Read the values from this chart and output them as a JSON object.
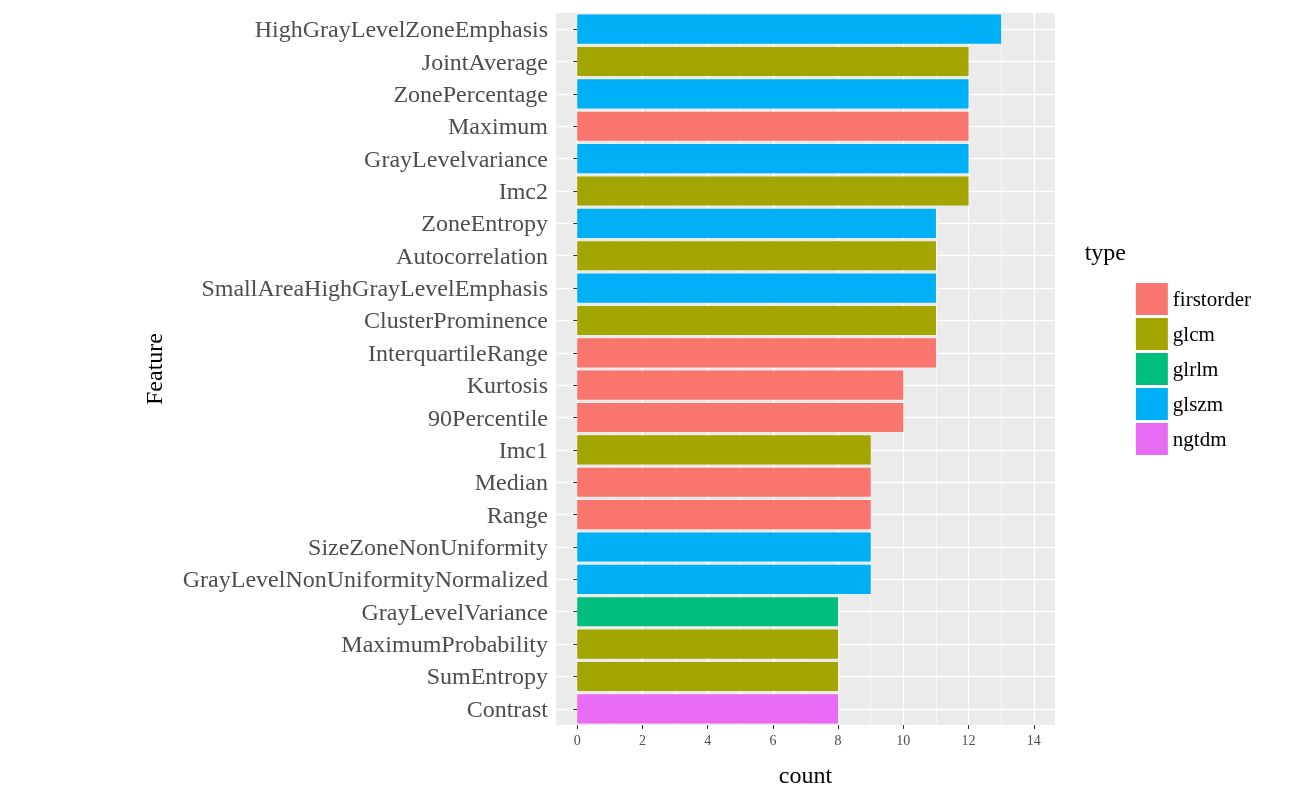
{
  "chart_data": {
    "type": "bar",
    "orientation": "horizontal",
    "stacked": true,
    "xlabel": "count",
    "ylabel": "Feature",
    "legend_title": "type",
    "legend": "right",
    "grid": true,
    "categories": [
      "HighGrayLevelZoneEmphasis",
      "JointAverage",
      "ZonePercentage",
      "Maximum",
      "GrayLevelvariance",
      "Imc2",
      "ZoneEntropy",
      "Autocorrelation",
      "SmallAreaHighGrayLevelEmphasis",
      "ClusterProminence",
      "InterquartileRange",
      "Kurtosis",
      "90Percentile",
      "Imc1",
      "Median",
      "Range",
      "SizeZoneNonUniformity",
      "GrayLevelNonUniformityNormalized",
      "GrayLevelVariance",
      "MaximumProbability",
      "SumEntropy",
      "Contrast"
    ],
    "xlim": [
      -0.65,
      14.65
    ],
    "xticks": [
      0,
      2,
      4,
      6,
      8,
      10,
      12,
      14
    ],
    "series": [
      {
        "name": "firstorder",
        "color": "#f8766d",
        "values": [
          null,
          null,
          null,
          12,
          null,
          null,
          null,
          null,
          null,
          null,
          11,
          10,
          10,
          null,
          9,
          9,
          null,
          null,
          null,
          null,
          null,
          null
        ]
      },
      {
        "name": "glcm",
        "color": "#a3a500",
        "values": [
          null,
          12,
          null,
          null,
          null,
          12,
          null,
          11,
          null,
          11,
          null,
          null,
          null,
          9,
          null,
          null,
          null,
          null,
          null,
          8,
          8,
          null
        ]
      },
      {
        "name": "glrlm",
        "color": "#00bf7d",
        "values": [
          null,
          null,
          null,
          null,
          null,
          null,
          null,
          null,
          null,
          null,
          null,
          null,
          null,
          null,
          null,
          null,
          null,
          null,
          8,
          null,
          null,
          null
        ]
      },
      {
        "name": "glszm",
        "color": "#00b0f6",
        "values": [
          13,
          null,
          12,
          null,
          12,
          null,
          11,
          null,
          11,
          null,
          null,
          null,
          null,
          null,
          null,
          null,
          9,
          9,
          null,
          null,
          null,
          null
        ]
      },
      {
        "name": "ngtdm",
        "color": "#e76bf3",
        "values": [
          null,
          null,
          null,
          null,
          null,
          null,
          null,
          null,
          null,
          null,
          null,
          null,
          null,
          null,
          null,
          null,
          null,
          null,
          null,
          null,
          null,
          8
        ]
      }
    ]
  }
}
